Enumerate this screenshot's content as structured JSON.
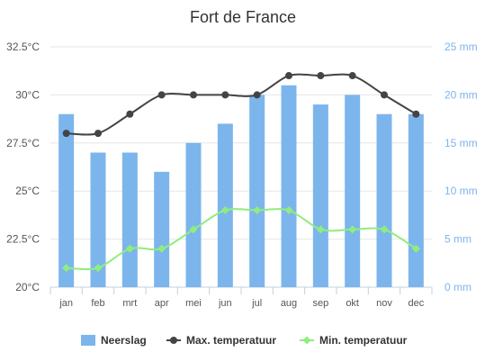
{
  "chart_data": {
    "type": "bar+line",
    "title": "Fort de France",
    "categories": [
      "jan",
      "feb",
      "mrt",
      "apr",
      "mei",
      "jun",
      "jul",
      "aug",
      "sep",
      "okt",
      "nov",
      "dec"
    ],
    "series": [
      {
        "name": "Neerslag",
        "type": "bar",
        "axis": "right",
        "color": "#7cb5ec",
        "values": [
          18,
          14,
          14,
          12,
          15,
          17,
          20,
          21,
          19,
          20,
          18,
          18
        ]
      },
      {
        "name": "Max. temperatuur",
        "type": "line",
        "axis": "left",
        "color": "#434348",
        "values": [
          28,
          28,
          29,
          30,
          30,
          30,
          30,
          31,
          31,
          31,
          30,
          29
        ]
      },
      {
        "name": "Min. temperatuur",
        "type": "line",
        "axis": "left",
        "color": "#90ed7d",
        "values": [
          21,
          21,
          22,
          22,
          23,
          24,
          24,
          24,
          23,
          23,
          23,
          22
        ]
      }
    ],
    "y_left": {
      "ticks": [
        "20°C",
        "22.5°C",
        "25°C",
        "27.5°C",
        "30°C",
        "32.5°C"
      ],
      "min": 20,
      "max": 32.5
    },
    "y_right": {
      "ticks": [
        "0 mm",
        "5 mm",
        "10 mm",
        "15 mm",
        "20 mm",
        "25 mm"
      ],
      "min": 0,
      "max": 25
    },
    "grid": true,
    "legend_position": "bottom-center"
  }
}
